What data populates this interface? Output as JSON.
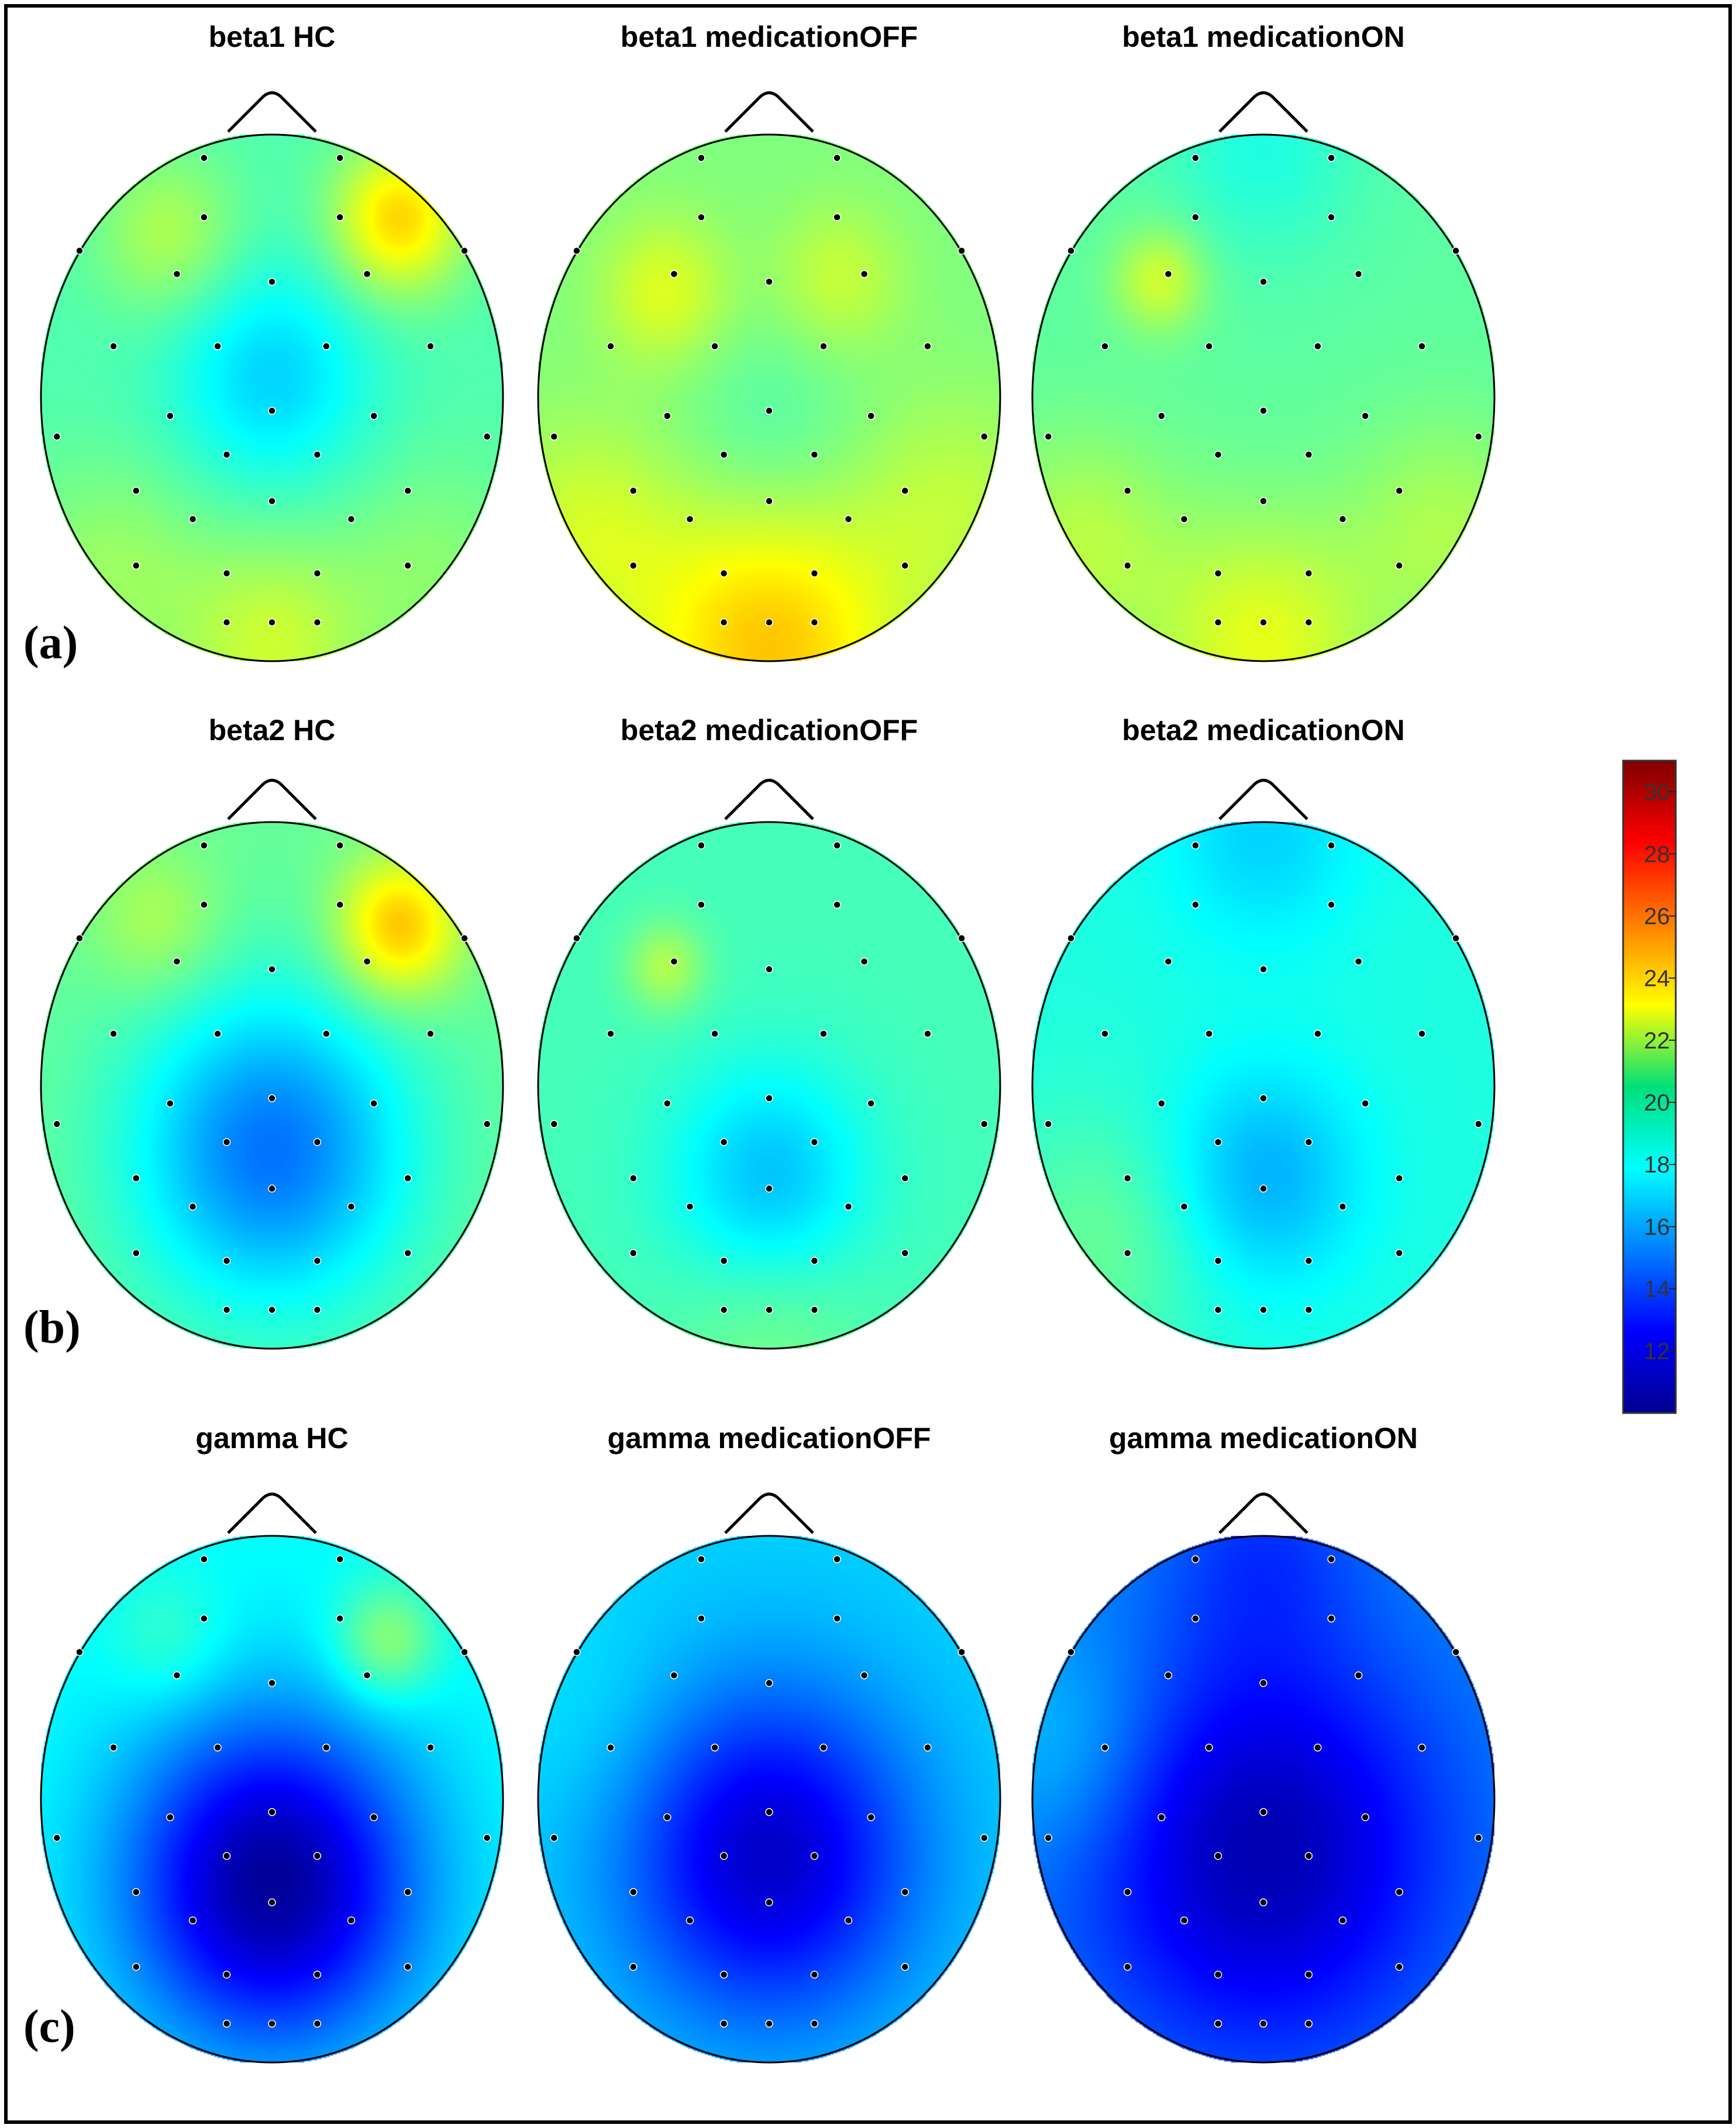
{
  "figure": {
    "panel_labels": [
      "(a)",
      "(b)",
      "(c)"
    ],
    "rows": [
      {
        "band": "beta1",
        "maps": [
          {
            "title": "beta1 HC",
            "base": 19.5,
            "blobs": [
              {
                "u": 0.0,
                "v": -0.08,
                "a": -2.5,
                "s": 0.3
              },
              {
                "u": 0.55,
                "v": -0.68,
                "a": 4.5,
                "s": 0.2
              },
              {
                "u": -0.45,
                "v": -0.62,
                "a": 2.0,
                "s": 0.22
              },
              {
                "u": 0.0,
                "v": 0.95,
                "a": 2.5,
                "s": 0.3
              },
              {
                "u": -0.7,
                "v": 0.65,
                "a": 1.5,
                "s": 0.3
              },
              {
                "u": 0.7,
                "v": 0.65,
                "a": 1.2,
                "s": 0.3
              }
            ]
          },
          {
            "title": "beta1 medicationOFF",
            "base": 20.5,
            "blobs": [
              {
                "u": -0.45,
                "v": -0.4,
                "a": 2.0,
                "s": 0.2
              },
              {
                "u": 0.3,
                "v": -0.45,
                "a": 1.5,
                "s": 0.2
              },
              {
                "u": 0.0,
                "v": 0.95,
                "a": 3.8,
                "s": 0.4
              },
              {
                "u": -0.8,
                "v": 0.5,
                "a": 1.6,
                "s": 0.3
              },
              {
                "u": 0.8,
                "v": 0.4,
                "a": 1.2,
                "s": 0.3
              },
              {
                "u": 0.0,
                "v": 0.12,
                "a": -1.0,
                "s": 0.3
              }
            ]
          },
          {
            "title": "beta1 medicationON",
            "base": 19.8,
            "blobs": [
              {
                "u": -0.45,
                "v": -0.45,
                "a": 2.4,
                "s": 0.14
              },
              {
                "u": 0.0,
                "v": -0.95,
                "a": -1.3,
                "s": 0.3
              },
              {
                "u": 0.0,
                "v": 0.95,
                "a": 2.8,
                "s": 0.35
              },
              {
                "u": -0.8,
                "v": 0.55,
                "a": 1.8,
                "s": 0.3
              },
              {
                "u": 0.8,
                "v": 0.5,
                "a": 1.6,
                "s": 0.3
              }
            ]
          }
        ]
      },
      {
        "band": "beta2",
        "maps": [
          {
            "title": "beta2 HC",
            "base": 20.0,
            "blobs": [
              {
                "u": 0.0,
                "v": 0.25,
                "a": -5.0,
                "s": 0.42
              },
              {
                "u": 0.55,
                "v": -0.6,
                "a": 4.5,
                "s": 0.19
              },
              {
                "u": -0.5,
                "v": -0.62,
                "a": 1.5,
                "s": 0.2
              }
            ]
          },
          {
            "title": "beta2 medicationOFF",
            "base": 19.3,
            "blobs": [
              {
                "u": 0.0,
                "v": 0.35,
                "a": -2.7,
                "s": 0.3
              },
              {
                "u": -0.45,
                "v": -0.45,
                "a": 2.2,
                "s": 0.12
              },
              {
                "u": 0.0,
                "v": 0.98,
                "a": 1.0,
                "s": 0.3
              }
            ]
          },
          {
            "title": "beta2 medicationON",
            "base": 18.5,
            "blobs": [
              {
                "u": 0.0,
                "v": 0.35,
                "a": -2.3,
                "s": 0.3
              },
              {
                "u": 0.0,
                "v": -0.95,
                "a": -1.5,
                "s": 0.3
              },
              {
                "u": -0.7,
                "v": 0.6,
                "a": 1.5,
                "s": 0.35
              }
            ]
          }
        ]
      },
      {
        "band": "gamma",
        "maps": [
          {
            "title": "gamma HC",
            "base": 18.0,
            "blobs": [
              {
                "u": 0.0,
                "v": 0.32,
                "a": -7.5,
                "s": 0.45
              },
              {
                "u": 0.5,
                "v": -0.6,
                "a": 3.0,
                "s": 0.16
              },
              {
                "u": -0.45,
                "v": -0.6,
                "a": 1.2,
                "s": 0.18
              }
            ]
          },
          {
            "title": "gamma medicationOFF",
            "base": 17.0,
            "blobs": [
              {
                "u": 0.0,
                "v": 0.22,
                "a": -5.5,
                "s": 0.45
              },
              {
                "u": -0.75,
                "v": -0.3,
                "a": 0.5,
                "s": 0.3
              }
            ]
          },
          {
            "title": "gamma medicationON",
            "base": 15.5,
            "blobs": [
              {
                "u": 0.0,
                "v": 0.2,
                "a": -4.5,
                "s": 0.55
              },
              {
                "u": 0.0,
                "v": -0.95,
                "a": -1.5,
                "s": 0.3
              },
              {
                "u": -0.85,
                "v": -0.2,
                "a": 1.5,
                "s": 0.3
              }
            ]
          }
        ]
      }
    ],
    "electrodes": [
      [
        -0.3,
        -0.93
      ],
      [
        0.3,
        -0.93
      ],
      [
        -0.3,
        -0.7
      ],
      [
        0.3,
        -0.7
      ],
      [
        -0.85,
        -0.57
      ],
      [
        -0.42,
        -0.48
      ],
      [
        0.0,
        -0.45
      ],
      [
        0.42,
        -0.48
      ],
      [
        0.85,
        -0.57
      ],
      [
        -0.7,
        -0.2
      ],
      [
        -0.24,
        -0.2
      ],
      [
        0.24,
        -0.2
      ],
      [
        0.7,
        -0.2
      ],
      [
        -0.95,
        0.15
      ],
      [
        -0.45,
        0.07
      ],
      [
        0.0,
        0.05
      ],
      [
        0.45,
        0.07
      ],
      [
        0.95,
        0.15
      ],
      [
        -0.2,
        0.22
      ],
      [
        0.2,
        0.22
      ],
      [
        -0.6,
        0.36
      ],
      [
        0.6,
        0.36
      ],
      [
        -0.35,
        0.47
      ],
      [
        0.0,
        0.4
      ],
      [
        0.35,
        0.47
      ],
      [
        -0.6,
        0.65
      ],
      [
        -0.2,
        0.68
      ],
      [
        0.2,
        0.68
      ],
      [
        0.6,
        0.65
      ],
      [
        -0.2,
        0.87
      ],
      [
        0.0,
        0.87
      ],
      [
        0.2,
        0.87
      ]
    ]
  },
  "colorbar": {
    "min": 10,
    "max": 31,
    "ticks": [
      12,
      14,
      16,
      18,
      20,
      22,
      24,
      26,
      28,
      30
    ]
  }
}
